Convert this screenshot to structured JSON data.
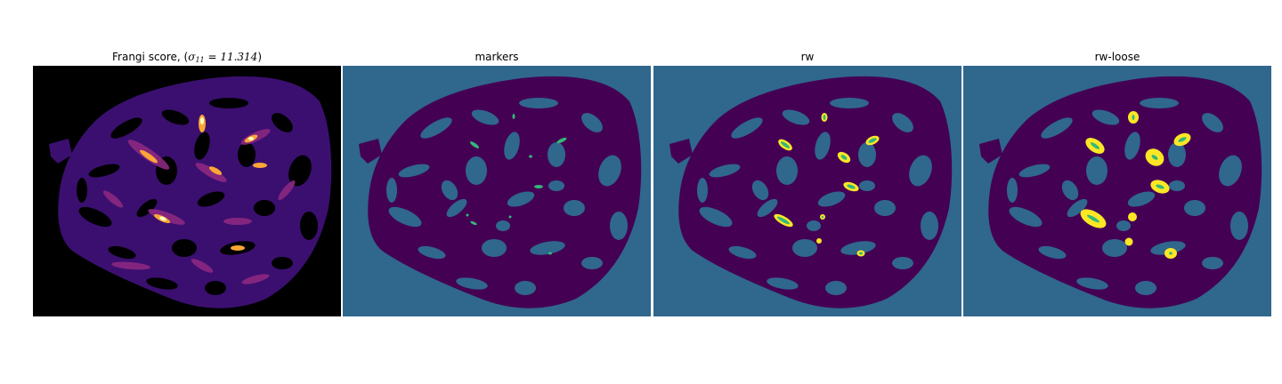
{
  "figure": {
    "panels": [
      {
        "id": "frangi",
        "title": "Frangi score, (",
        "title_sigma": "σ",
        "title_sub": "11",
        "title_eq": " = 11.314",
        "title_end": ")",
        "colormap": "magma"
      },
      {
        "id": "markers",
        "title": "markers",
        "colormap": "viridis"
      },
      {
        "id": "rw",
        "title": "rw",
        "colormap": "viridis"
      },
      {
        "id": "rw-loose",
        "title": "rw-loose",
        "colormap": "viridis"
      }
    ],
    "colors": {
      "background_label": "#30678d",
      "tissue": "#440154",
      "marker": "#35b779",
      "segment": "#fde725",
      "frangi_bg": "#000000",
      "frangi_low": "#3b0f70",
      "frangi_mid": "#8c2981",
      "frangi_high": "#fcfdbf"
    }
  }
}
